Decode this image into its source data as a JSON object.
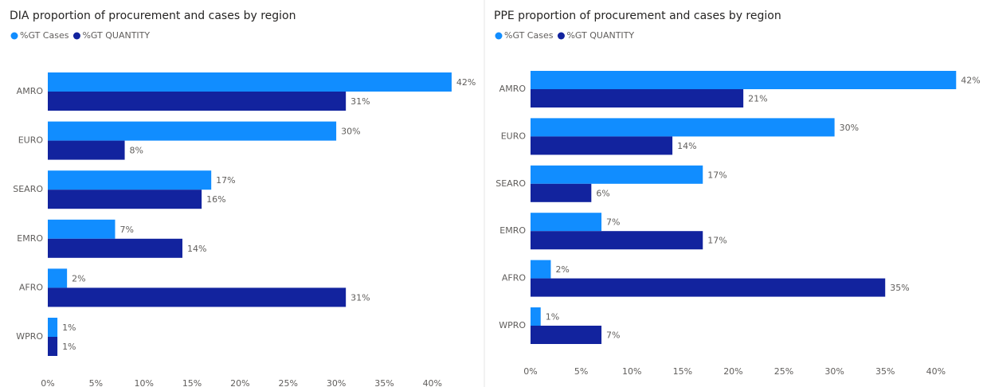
{
  "chart_data": [
    {
      "type": "hbar",
      "title": "DIA proportion of procurement and cases by region",
      "categories": [
        "AMRO",
        "EURO",
        "SEARO",
        "EMRO",
        "AFRO",
        "WPRO"
      ],
      "series": [
        {
          "name": "%GT Cases",
          "color": "#118DFF",
          "values": [
            42,
            30,
            17,
            7,
            2,
            1
          ],
          "value_labels": [
            "42%",
            "30%",
            "17%",
            "7%",
            "2%",
            "1%"
          ]
        },
        {
          "name": "%GT QUANTITY",
          "color": "#12239E",
          "values": [
            31,
            8,
            16,
            14,
            31,
            1
          ],
          "value_labels": [
            "31%",
            "8%",
            "16%",
            "14%",
            "31%",
            "1%"
          ]
        }
      ],
      "xlim": [
        0,
        43
      ],
      "xticks": [
        {
          "value": 0,
          "label": "0%"
        },
        {
          "value": 5,
          "label": "5%"
        },
        {
          "value": 10,
          "label": "10%"
        },
        {
          "value": 15,
          "label": "15%"
        },
        {
          "value": 20,
          "label": "20%"
        },
        {
          "value": 25,
          "label": "25%"
        },
        {
          "value": 30,
          "label": "30%"
        },
        {
          "value": 35,
          "label": "35%"
        },
        {
          "value": 40,
          "label": "40%"
        }
      ],
      "legend": "top-left"
    },
    {
      "type": "hbar",
      "title": "PPE proportion of procurement and cases by region",
      "categories": [
        "AMRO",
        "EURO",
        "SEARO",
        "EMRO",
        "AFRO",
        "WPRO"
      ],
      "series": [
        {
          "name": "%GT Cases",
          "color": "#118DFF",
          "values": [
            42,
            30,
            17,
            7,
            2,
            1
          ],
          "value_labels": [
            "42%",
            "30%",
            "17%",
            "7%",
            "2%",
            "1%"
          ]
        },
        {
          "name": "%GT QUANTITY",
          "color": "#12239E",
          "values": [
            21,
            14,
            6,
            17,
            35,
            7
          ],
          "value_labels": [
            "21%",
            "14%",
            "6%",
            "17%",
            "35%",
            "7%"
          ]
        }
      ],
      "xlim": [
        0,
        43
      ],
      "xticks": [
        {
          "value": 0,
          "label": "0%"
        },
        {
          "value": 5,
          "label": "5%"
        },
        {
          "value": 10,
          "label": "10%"
        },
        {
          "value": 15,
          "label": "15%"
        },
        {
          "value": 20,
          "label": "20%"
        },
        {
          "value": 25,
          "label": "25%"
        },
        {
          "value": 30,
          "label": "30%"
        },
        {
          "value": 35,
          "label": "35%"
        },
        {
          "value": 40,
          "label": "40%"
        }
      ],
      "legend": "top-left"
    }
  ]
}
